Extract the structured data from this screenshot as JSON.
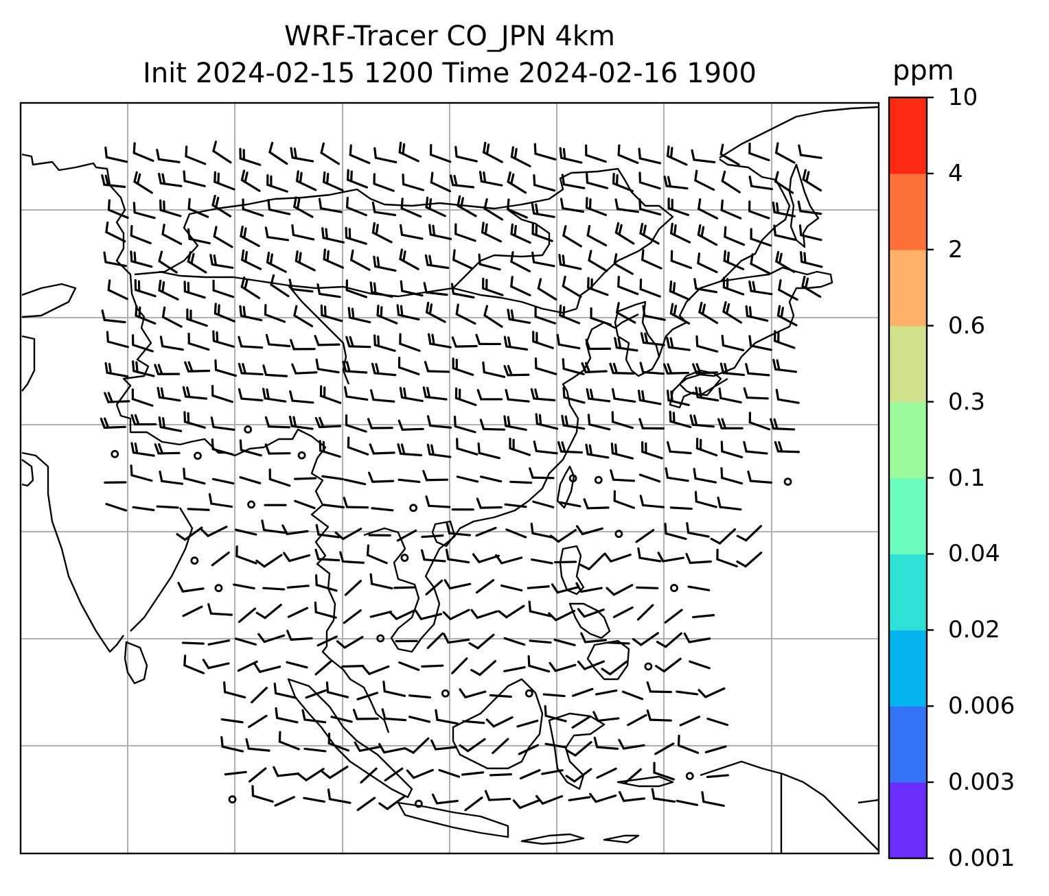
{
  "title_line1": "WRF-Tracer CO_JPN 4km",
  "title_line2": "Init 2024-02-15 1200 Time 2024-02-16 1900",
  "colorbar": {
    "unit": "ppm",
    "levels": [
      "0.001",
      "0.003",
      "0.006",
      "0.02",
      "0.04",
      "0.1",
      "0.3",
      "0.6",
      "2",
      "4",
      "10"
    ],
    "colors": [
      "#6a2dfb",
      "#3473f5",
      "#04b4ef",
      "#2fe0d4",
      "#6bfcc0",
      "#9bfa9b",
      "#cfe18a",
      "#fdb067",
      "#fd7039",
      "#fc2a12"
    ]
  },
  "map": {
    "gridlines": "on",
    "coastlines": "on",
    "overlay": "wind barbs",
    "coastline_color": "#000000",
    "gridline_color": "#b0b0b0"
  }
}
